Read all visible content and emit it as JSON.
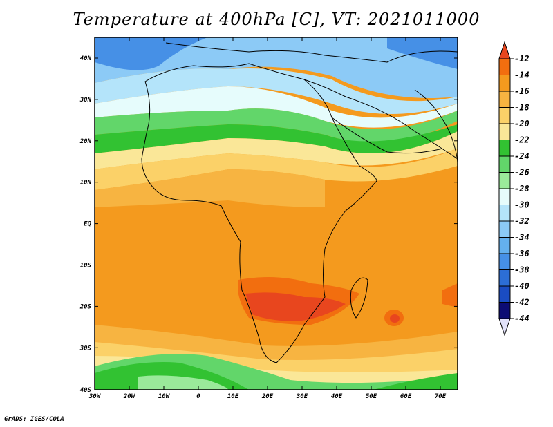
{
  "title": "Temperature at 400hPa [C], VT: 2021011000",
  "credit": "GrADS: IGES/COLA",
  "map": {
    "lat_labels": [
      "40N",
      "30N",
      "20N",
      "10N",
      "EQ",
      "10S",
      "20S",
      "30S",
      "40S"
    ],
    "lon_labels": [
      "30W",
      "20W",
      "10W",
      "0",
      "10E",
      "20E",
      "30E",
      "40E",
      "50E",
      "60E",
      "70E"
    ]
  },
  "colorbar": {
    "levels": [
      "-12",
      "-14",
      "-16",
      "-18",
      "-20",
      "-22",
      "-24",
      "-26",
      "-28",
      "-30",
      "-32",
      "-34",
      "-36",
      "-38",
      "-40",
      "-42",
      "-44"
    ],
    "colors": [
      "#e8461e",
      "#f26e0f",
      "#f49a1e",
      "#f7b441",
      "#fbd168",
      "#fae798",
      "#32c232",
      "#62d66a",
      "#9aea9a",
      "#e6fcfc",
      "#b4e4fa",
      "#8ccaf6",
      "#64b0ee",
      "#4690e6",
      "#2c6ed6",
      "#1a4cc2",
      "#0c0c74"
    ]
  }
}
